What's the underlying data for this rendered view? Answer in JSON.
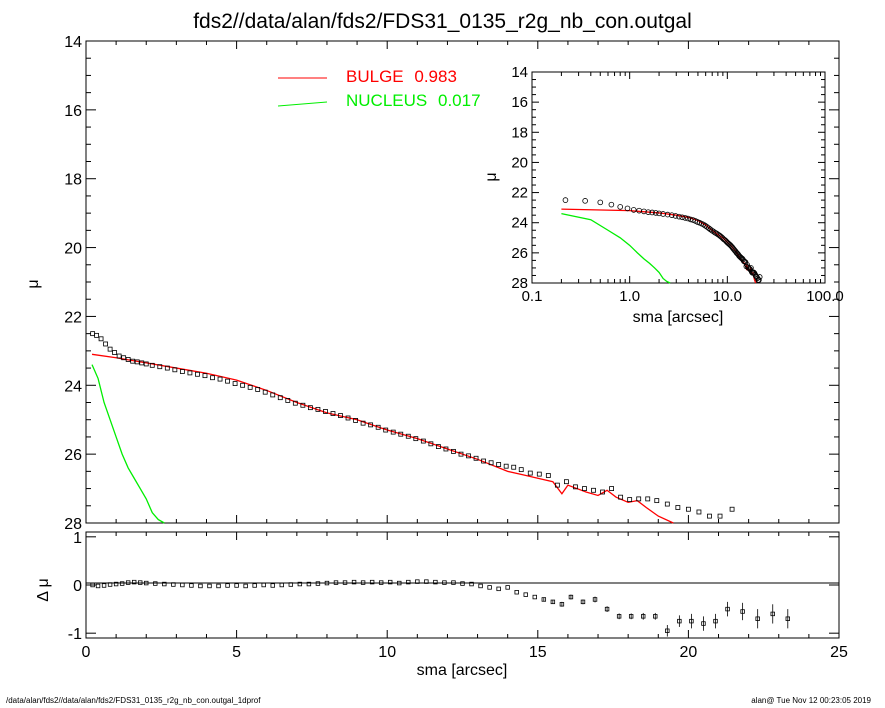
{
  "title": "fds2//data/alan/fds2/FDS31_0135_r2g_nb_con.outgal",
  "footer_left": "/data/alan/fds2//data/alan/fds2/FDS31_0135_r2g_nb_con.outgal_1dprof",
  "footer_right": "alan@  Tue Nov 12 00:23:05 2019",
  "colors": {
    "bulge": "#ff0000",
    "nucleus": "#00ee00",
    "data": "#000000"
  },
  "chart_data": [
    {
      "type": "scatter",
      "panel": "main",
      "xlabel": "sma [arcsec]",
      "ylabel": "μ",
      "xlim": [
        0,
        25
      ],
      "ylim": [
        28,
        14
      ],
      "x_ticks": [
        "0",
        "5",
        "10",
        "15",
        "20",
        "25"
      ],
      "y_ticks": [
        "14",
        "16",
        "18",
        "20",
        "22",
        "24",
        "26",
        "28"
      ],
      "legend": [
        {
          "name": "BULGE",
          "value": "0.983",
          "color": "#ff0000"
        },
        {
          "name": "NUCLEUS",
          "value": "0.017",
          "color": "#00ee00"
        }
      ],
      "data_points": {
        "x": [
          0.22,
          0.35,
          0.5,
          0.65,
          0.8,
          0.95,
          1.1,
          1.25,
          1.4,
          1.55,
          1.7,
          1.85,
          2.0,
          2.2,
          2.45,
          2.7,
          2.95,
          3.2,
          3.45,
          3.7,
          3.95,
          4.2,
          4.45,
          4.7,
          4.95,
          5.2,
          5.45,
          5.7,
          5.95,
          6.2,
          6.45,
          6.7,
          6.95,
          7.2,
          7.45,
          7.7,
          7.95,
          8.2,
          8.45,
          8.7,
          8.95,
          9.2,
          9.45,
          9.7,
          9.95,
          10.2,
          10.45,
          10.7,
          10.95,
          11.2,
          11.45,
          11.7,
          11.95,
          12.2,
          12.45,
          12.7,
          12.95,
          13.2,
          13.45,
          13.7,
          13.95,
          14.2,
          14.45,
          14.75,
          15.05,
          15.35,
          15.65,
          15.95,
          16.25,
          16.55,
          16.85,
          17.15,
          17.45,
          17.75,
          18.05,
          18.35,
          18.65,
          18.95,
          19.3,
          19.65,
          20.0,
          20.35,
          20.7,
          21.05,
          21.45
        ],
        "y": [
          22.5,
          22.55,
          22.65,
          22.8,
          22.95,
          23.05,
          23.15,
          23.2,
          23.25,
          23.3,
          23.32,
          23.35,
          23.38,
          23.42,
          23.46,
          23.5,
          23.55,
          23.6,
          23.64,
          23.68,
          23.72,
          23.78,
          23.82,
          23.88,
          23.95,
          24.0,
          24.06,
          24.12,
          24.2,
          24.28,
          24.36,
          24.44,
          24.52,
          24.58,
          24.65,
          24.7,
          24.76,
          24.82,
          24.88,
          24.95,
          25.02,
          25.1,
          25.15,
          25.22,
          25.3,
          25.36,
          25.42,
          25.48,
          25.55,
          25.62,
          25.7,
          25.78,
          25.85,
          25.92,
          26.0,
          26.05,
          26.12,
          26.2,
          26.25,
          26.3,
          26.35,
          26.38,
          26.45,
          26.55,
          26.58,
          26.62,
          26.9,
          26.8,
          26.95,
          27.0,
          27.05,
          27.1,
          27.0,
          27.25,
          27.32,
          27.3,
          27.3,
          27.35,
          27.45,
          27.55,
          27.6,
          27.68,
          27.8,
          27.8,
          27.6
        ]
      },
      "bulge": {
        "x": [
          0.2,
          1,
          2,
          3,
          4,
          5,
          6,
          7,
          8,
          9,
          10,
          11,
          12,
          13,
          14,
          14.5,
          15,
          15.5,
          15.8,
          16.0,
          16.3,
          16.6,
          17.0,
          17.3,
          17.6,
          18.0,
          18.3,
          18.6,
          19.0,
          19.5
        ],
        "y": [
          23.1,
          23.2,
          23.35,
          23.5,
          23.65,
          23.85,
          24.15,
          24.5,
          24.8,
          25.0,
          25.3,
          25.55,
          25.85,
          26.15,
          26.5,
          26.6,
          26.7,
          26.8,
          27.15,
          26.9,
          27.0,
          27.1,
          27.2,
          27.05,
          27.25,
          27.4,
          27.35,
          27.55,
          27.8,
          28.0
        ]
      },
      "nucleus": {
        "x": [
          0.2,
          0.4,
          0.6,
          0.8,
          1.0,
          1.2,
          1.4,
          1.6,
          1.8,
          2.0,
          2.2,
          2.4,
          2.6
        ],
        "y": [
          23.4,
          23.8,
          24.5,
          25.0,
          25.5,
          26.0,
          26.4,
          26.7,
          27.0,
          27.3,
          27.7,
          27.9,
          28.0
        ]
      }
    },
    {
      "type": "scatter",
      "panel": "residual",
      "xlabel": "sma [arcsec]",
      "ylabel": "Δ μ",
      "xlim": [
        0,
        25
      ],
      "ylim": [
        -1.1,
        1.1
      ],
      "y_ticks": [
        "1",
        "0",
        "-1"
      ],
      "x": [
        0.22,
        0.4,
        0.6,
        0.8,
        1.0,
        1.2,
        1.4,
        1.6,
        1.8,
        2.0,
        2.3,
        2.6,
        2.9,
        3.2,
        3.5,
        3.8,
        4.1,
        4.4,
        4.7,
        5.0,
        5.3,
        5.6,
        5.9,
        6.2,
        6.5,
        6.8,
        7.1,
        7.4,
        7.7,
        8.0,
        8.3,
        8.6,
        8.9,
        9.2,
        9.5,
        9.8,
        10.1,
        10.4,
        10.7,
        11.0,
        11.3,
        11.6,
        11.9,
        12.2,
        12.5,
        12.8,
        13.1,
        13.4,
        13.7,
        14.0,
        14.3,
        14.6,
        14.9,
        15.2,
        15.5,
        15.8,
        16.1,
        16.5,
        16.9,
        17.3,
        17.7,
        18.1,
        18.5,
        18.9,
        19.3,
        19.7,
        20.1,
        20.5,
        20.9,
        21.3,
        21.8,
        22.3,
        22.8,
        23.3
      ],
      "y": [
        0.0,
        -0.02,
        -0.01,
        0.01,
        0.02,
        0.03,
        0.05,
        0.06,
        0.05,
        0.04,
        0.03,
        0.02,
        0.01,
        0.0,
        -0.01,
        -0.02,
        -0.02,
        -0.02,
        -0.01,
        -0.01,
        -0.02,
        -0.01,
        0.0,
        -0.01,
        0.0,
        0.01,
        0.02,
        0.02,
        0.03,
        0.04,
        0.05,
        0.05,
        0.06,
        0.05,
        0.06,
        0.05,
        0.06,
        0.04,
        0.06,
        0.07,
        0.07,
        0.06,
        0.05,
        0.05,
        0.03,
        0.02,
        -0.02,
        -0.05,
        -0.08,
        -0.05,
        -0.15,
        -0.2,
        -0.25,
        -0.3,
        -0.35,
        -0.4,
        -0.25,
        -0.35,
        -0.3,
        -0.5,
        -0.65,
        -0.65,
        -0.65,
        -0.65,
        -0.95,
        -0.75,
        -0.75,
        -0.8,
        -0.75,
        -0.5,
        -0.55,
        -0.7,
        -0.6,
        -0.7
      ],
      "err": [
        0.01,
        0.01,
        0.01,
        0.01,
        0.01,
        0.01,
        0.01,
        0.01,
        0.01,
        0.01,
        0.01,
        0.01,
        0.01,
        0.01,
        0.01,
        0.01,
        0.01,
        0.01,
        0.01,
        0.01,
        0.01,
        0.01,
        0.01,
        0.01,
        0.01,
        0.01,
        0.01,
        0.01,
        0.01,
        0.01,
        0.01,
        0.01,
        0.01,
        0.01,
        0.01,
        0.01,
        0.01,
        0.01,
        0.01,
        0.01,
        0.01,
        0.01,
        0.01,
        0.01,
        0.02,
        0.02,
        0.02,
        0.02,
        0.02,
        0.02,
        0.03,
        0.03,
        0.03,
        0.04,
        0.04,
        0.05,
        0.05,
        0.05,
        0.06,
        0.06,
        0.06,
        0.06,
        0.07,
        0.07,
        0.12,
        0.12,
        0.15,
        0.15,
        0.15,
        0.15,
        0.18,
        0.2,
        0.2,
        0.2
      ]
    },
    {
      "type": "scatter",
      "panel": "inset",
      "xscale": "log",
      "xlabel": "sma [arcsec]",
      "ylabel": "μ",
      "xlim": [
        0.1,
        100.0
      ],
      "ylim": [
        28,
        14
      ],
      "x_ticks": [
        "0.1",
        "1.0",
        "10.0",
        "100.0"
      ],
      "y_ticks": [
        "14",
        "16",
        "18",
        "20",
        "22",
        "24",
        "26",
        "28"
      ]
    }
  ]
}
